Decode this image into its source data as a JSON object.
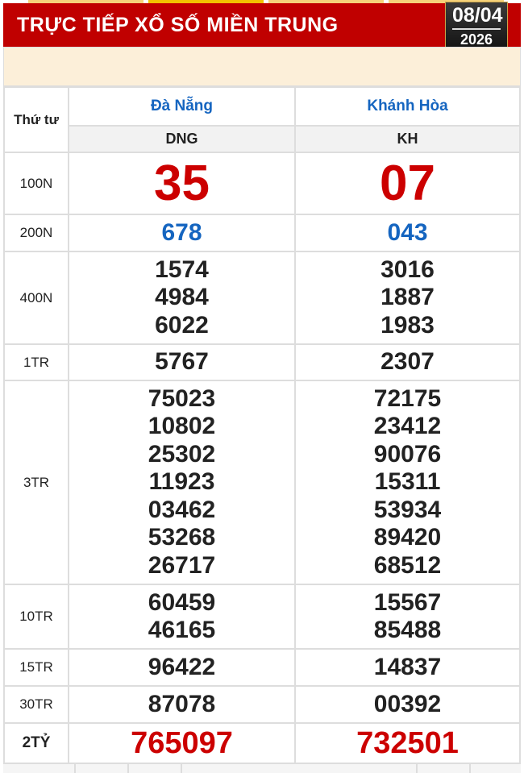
{
  "header": {
    "title": "TRỰC TIẾP XỔ SỐ MIỀN TRUNG",
    "date": "08/04",
    "year": "2026",
    "color": "#c00000"
  },
  "table": {
    "day": "Thứ tư",
    "provinces": [
      {
        "name": "Đà Nẵng",
        "code": "DNG"
      },
      {
        "name": "Khánh Hòa",
        "code": "KH"
      }
    ],
    "prizes": [
      {
        "label": "100N",
        "values": [
          [
            "35"
          ],
          [
            "07"
          ]
        ]
      },
      {
        "label": "200N",
        "values": [
          [
            "678"
          ],
          [
            "043"
          ]
        ]
      },
      {
        "label": "400N",
        "values": [
          [
            "1574",
            "4984",
            "6022"
          ],
          [
            "3016",
            "1887",
            "1983"
          ]
        ]
      },
      {
        "label": "1TR",
        "values": [
          [
            "5767"
          ],
          [
            "2307"
          ]
        ]
      },
      {
        "label": "3TR",
        "values": [
          [
            "75023",
            "10802",
            "25302",
            "11923",
            "03462",
            "53268",
            "26717"
          ],
          [
            "72175",
            "23412",
            "90076",
            "15311",
            "53934",
            "89420",
            "68512"
          ]
        ]
      },
      {
        "label": "10TR",
        "values": [
          [
            "60459",
            "46165"
          ],
          [
            "15567",
            "85488"
          ]
        ]
      },
      {
        "label": "15TR",
        "values": [
          [
            "96422"
          ],
          [
            "14837"
          ]
        ]
      },
      {
        "label": "30TR",
        "values": [
          [
            "87078"
          ],
          [
            "00392"
          ]
        ]
      },
      {
        "label": "2TỶ",
        "values": [
          [
            "765097"
          ],
          [
            "732501"
          ]
        ]
      }
    ]
  }
}
